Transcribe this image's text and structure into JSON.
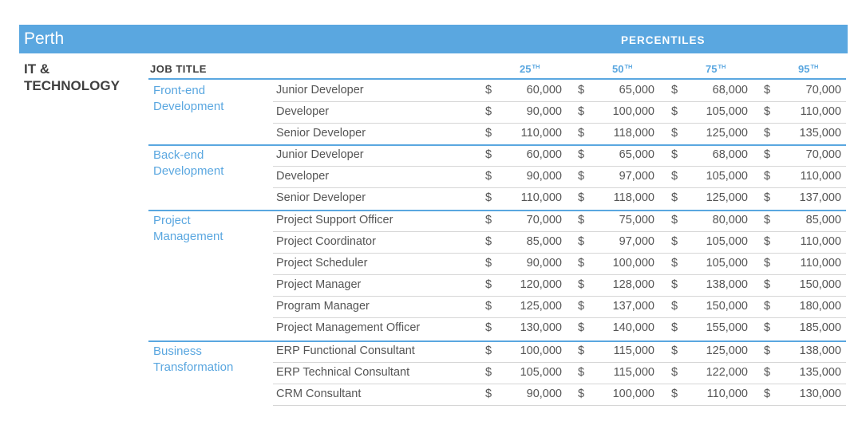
{
  "region": "Perth",
  "percentiles_label": "PERCENTILES",
  "sector": [
    "IT &",
    "TECHNOLOGY"
  ],
  "job_title_header": "JOB TITLE",
  "currency": "$",
  "percentile_headers": [
    {
      "num": "25",
      "suffix": "TH"
    },
    {
      "num": "50",
      "suffix": "TH"
    },
    {
      "num": "75",
      "suffix": "TH"
    },
    {
      "num": "95",
      "suffix": "TH"
    }
  ],
  "colors": {
    "accent": "#5aa7e0",
    "text": "#555555",
    "heading": "#3f3f3f"
  },
  "categories": [
    {
      "name": [
        "Front-end",
        "Development"
      ],
      "rows": [
        {
          "title": "Junior Developer",
          "values": [
            "60,000",
            "65,000",
            "68,000",
            "70,000"
          ]
        },
        {
          "title": "Developer",
          "values": [
            "90,000",
            "100,000",
            "105,000",
            "110,000"
          ]
        },
        {
          "title": "Senior Developer",
          "values": [
            "110,000",
            "118,000",
            "125,000",
            "135,000"
          ]
        }
      ]
    },
    {
      "name": [
        "Back-end",
        "Development"
      ],
      "rows": [
        {
          "title": "Junior Developer",
          "values": [
            "60,000",
            "65,000",
            "68,000",
            "70,000"
          ]
        },
        {
          "title": "Developer",
          "values": [
            "90,000",
            "97,000",
            "105,000",
            "110,000"
          ]
        },
        {
          "title": "Senior Developer",
          "values": [
            "110,000",
            "118,000",
            "125,000",
            "137,000"
          ]
        }
      ]
    },
    {
      "name": [
        "Project",
        "Management"
      ],
      "rows": [
        {
          "title": "Project Support Officer",
          "values": [
            "70,000",
            "75,000",
            "80,000",
            "85,000"
          ]
        },
        {
          "title": "Project Coordinator",
          "values": [
            "85,000",
            "97,000",
            "105,000",
            "110,000"
          ]
        },
        {
          "title": "Project Scheduler",
          "values": [
            "90,000",
            "100,000",
            "105,000",
            "110,000"
          ]
        },
        {
          "title": "Project Manager",
          "values": [
            "120,000",
            "128,000",
            "138,000",
            "150,000"
          ]
        },
        {
          "title": "Program Manager",
          "values": [
            "125,000",
            "137,000",
            "150,000",
            "180,000"
          ]
        },
        {
          "title": "Project Management Officer",
          "values": [
            "130,000",
            "140,000",
            "155,000",
            "185,000"
          ]
        }
      ]
    },
    {
      "name": [
        "Business",
        "Transformation"
      ],
      "rows": [
        {
          "title": "ERP Functional Consultant",
          "values": [
            "100,000",
            "115,000",
            "125,000",
            "138,000"
          ]
        },
        {
          "title": "ERP Technical Consultant",
          "values": [
            "105,000",
            "115,000",
            "122,000",
            "135,000"
          ]
        },
        {
          "title": "CRM Consultant",
          "values": [
            "90,000",
            "100,000",
            "110,000",
            "130,000"
          ]
        }
      ]
    }
  ]
}
